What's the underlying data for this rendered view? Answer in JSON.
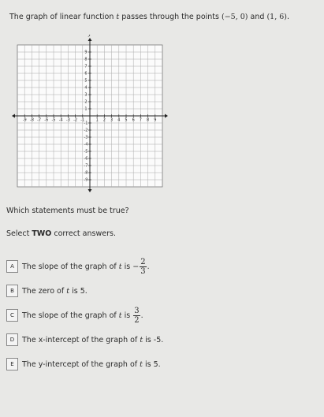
{
  "question": {
    "parts": [
      "The graph of linear function ",
      "t",
      " passes through the points ",
      "(−5, 0)",
      " and ",
      "(1, 6)",
      "."
    ]
  },
  "graph": {
    "x_label": "x",
    "y_label": "y",
    "xlim": [
      -10,
      10
    ],
    "ylim": [
      -10,
      10
    ],
    "xticks": [
      -9,
      -8,
      -7,
      -6,
      -5,
      -4,
      -3,
      -2,
      -1,
      1,
      2,
      3,
      4,
      5,
      6,
      7,
      8,
      9
    ],
    "yticks": [
      -9,
      -8,
      -7,
      -6,
      -5,
      -4,
      -3,
      -2,
      -1,
      1,
      2,
      3,
      4,
      5,
      6,
      7,
      8,
      9
    ]
  },
  "prompt": "Which statements must be true?",
  "instruction": {
    "parts": [
      "Select ",
      "TWO",
      " correct answers."
    ]
  },
  "options": [
    {
      "letter": "A",
      "parts": [
        "The slope of the graph of ",
        "t",
        " is ",
        "−"
      ],
      "fraction": [
        "2",
        "3"
      ],
      "end": "."
    },
    {
      "letter": "B",
      "parts": [
        "The zero of ",
        "t",
        " is 5."
      ]
    },
    {
      "letter": "C",
      "parts": [
        "The slope of the graph of ",
        "t",
        " is "
      ],
      "fraction": [
        "3",
        "2"
      ],
      "end": "."
    },
    {
      "letter": "D",
      "parts": [
        "The x-intercept of the graph of ",
        "t",
        " is -5."
      ]
    },
    {
      "letter": "E",
      "parts": [
        "The y-intercept of the graph of ",
        "t",
        " is 5."
      ]
    }
  ]
}
